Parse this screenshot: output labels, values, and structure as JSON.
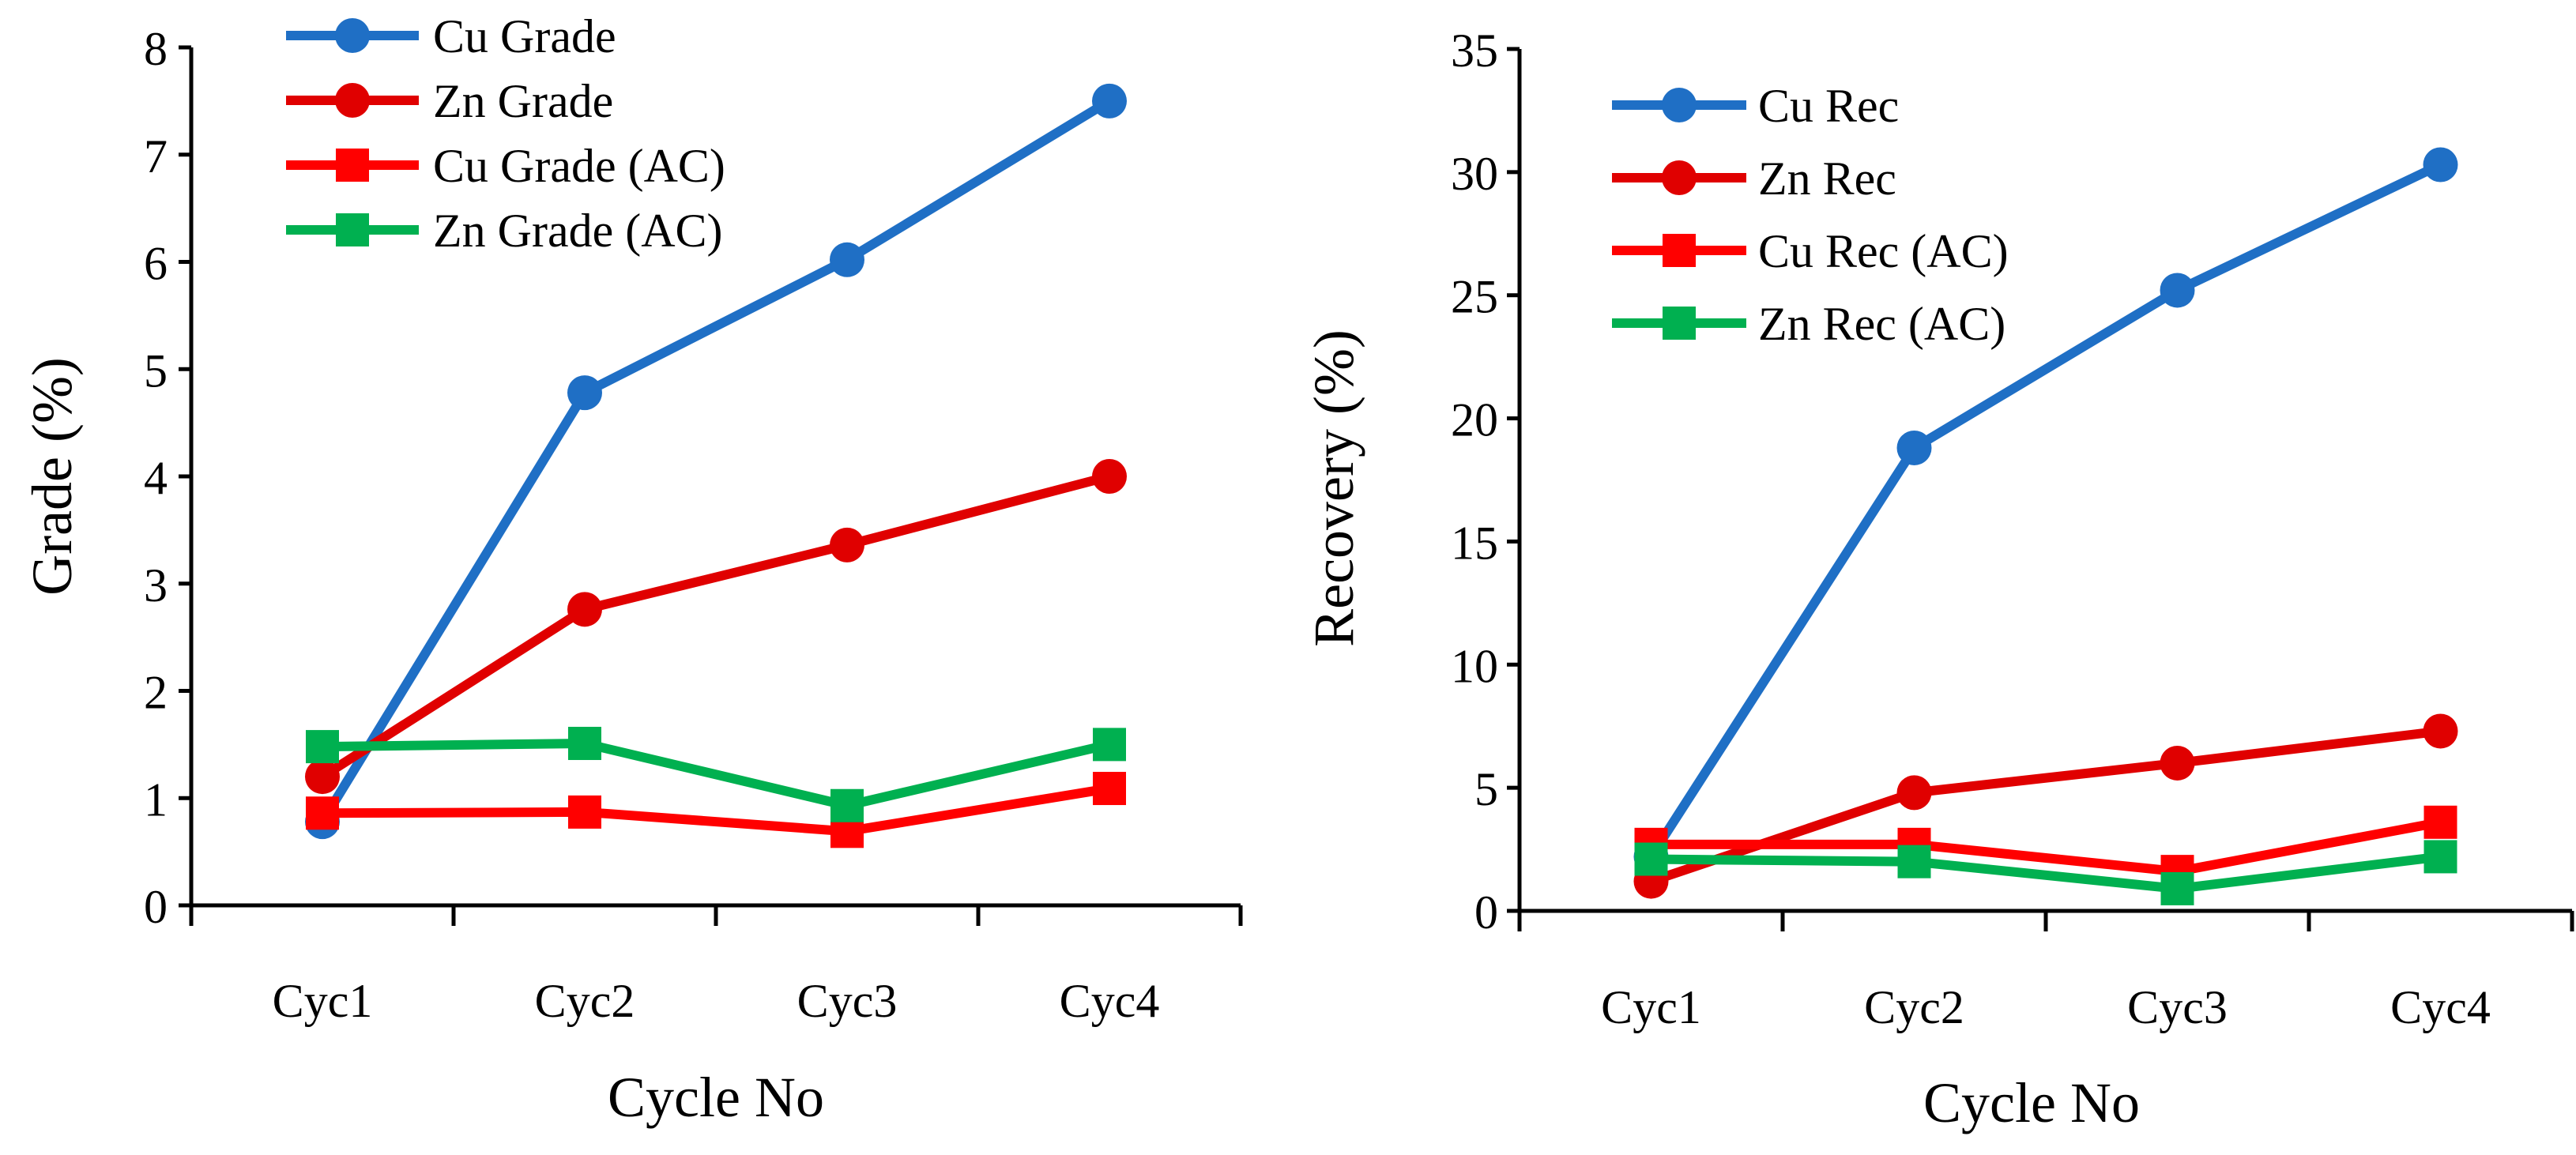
{
  "chart_data": [
    {
      "type": "line",
      "categories": [
        "Cyc1",
        "Cyc2",
        "Cyc3",
        "Cyc4"
      ],
      "xlabel": "Cycle No",
      "ylabel": "Grade (%)",
      "ylim": [
        0,
        8
      ],
      "yticks": [
        0,
        1,
        2,
        3,
        4,
        5,
        6,
        7,
        8
      ],
      "legend_position": "top-left",
      "series": [
        {
          "name": "Cu Grade",
          "color": "#1F6FC5",
          "marker": "circle",
          "values": [
            0.78,
            4.78,
            6.02,
            7.5
          ]
        },
        {
          "name": "Zn Grade",
          "color": "#E00000",
          "marker": "circle",
          "values": [
            1.2,
            2.76,
            3.36,
            4.0
          ]
        },
        {
          "name": "Cu Grade (AC)",
          "color": "#FF0000",
          "marker": "square",
          "values": [
            0.86,
            0.87,
            0.69,
            1.09
          ]
        },
        {
          "name": "Zn Grade (AC)",
          "color": "#00B050",
          "marker": "square",
          "values": [
            1.48,
            1.51,
            0.93,
            1.5
          ]
        }
      ]
    },
    {
      "type": "line",
      "categories": [
        "Cyc1",
        "Cyc2",
        "Cyc3",
        "Cyc4"
      ],
      "xlabel": "Cycle No",
      "ylabel": "Recovery (%)",
      "ylim": [
        0,
        35
      ],
      "yticks": [
        0,
        5,
        10,
        15,
        20,
        25,
        30,
        35
      ],
      "legend_position": "top-left",
      "series": [
        {
          "name": "Cu Rec",
          "color": "#1F6FC5",
          "marker": "circle",
          "values": [
            2.2,
            18.8,
            25.2,
            30.3
          ]
        },
        {
          "name": "Zn Rec",
          "color": "#E00000",
          "marker": "circle",
          "values": [
            1.2,
            4.8,
            6.0,
            7.3
          ]
        },
        {
          "name": "Cu Rec (AC)",
          "color": "#FF0000",
          "marker": "square",
          "values": [
            2.7,
            2.7,
            1.6,
            3.6
          ]
        },
        {
          "name": "Zn Rec (AC)",
          "color": "#00B050",
          "marker": "square",
          "values": [
            2.1,
            2.0,
            0.9,
            2.2
          ]
        }
      ]
    }
  ]
}
